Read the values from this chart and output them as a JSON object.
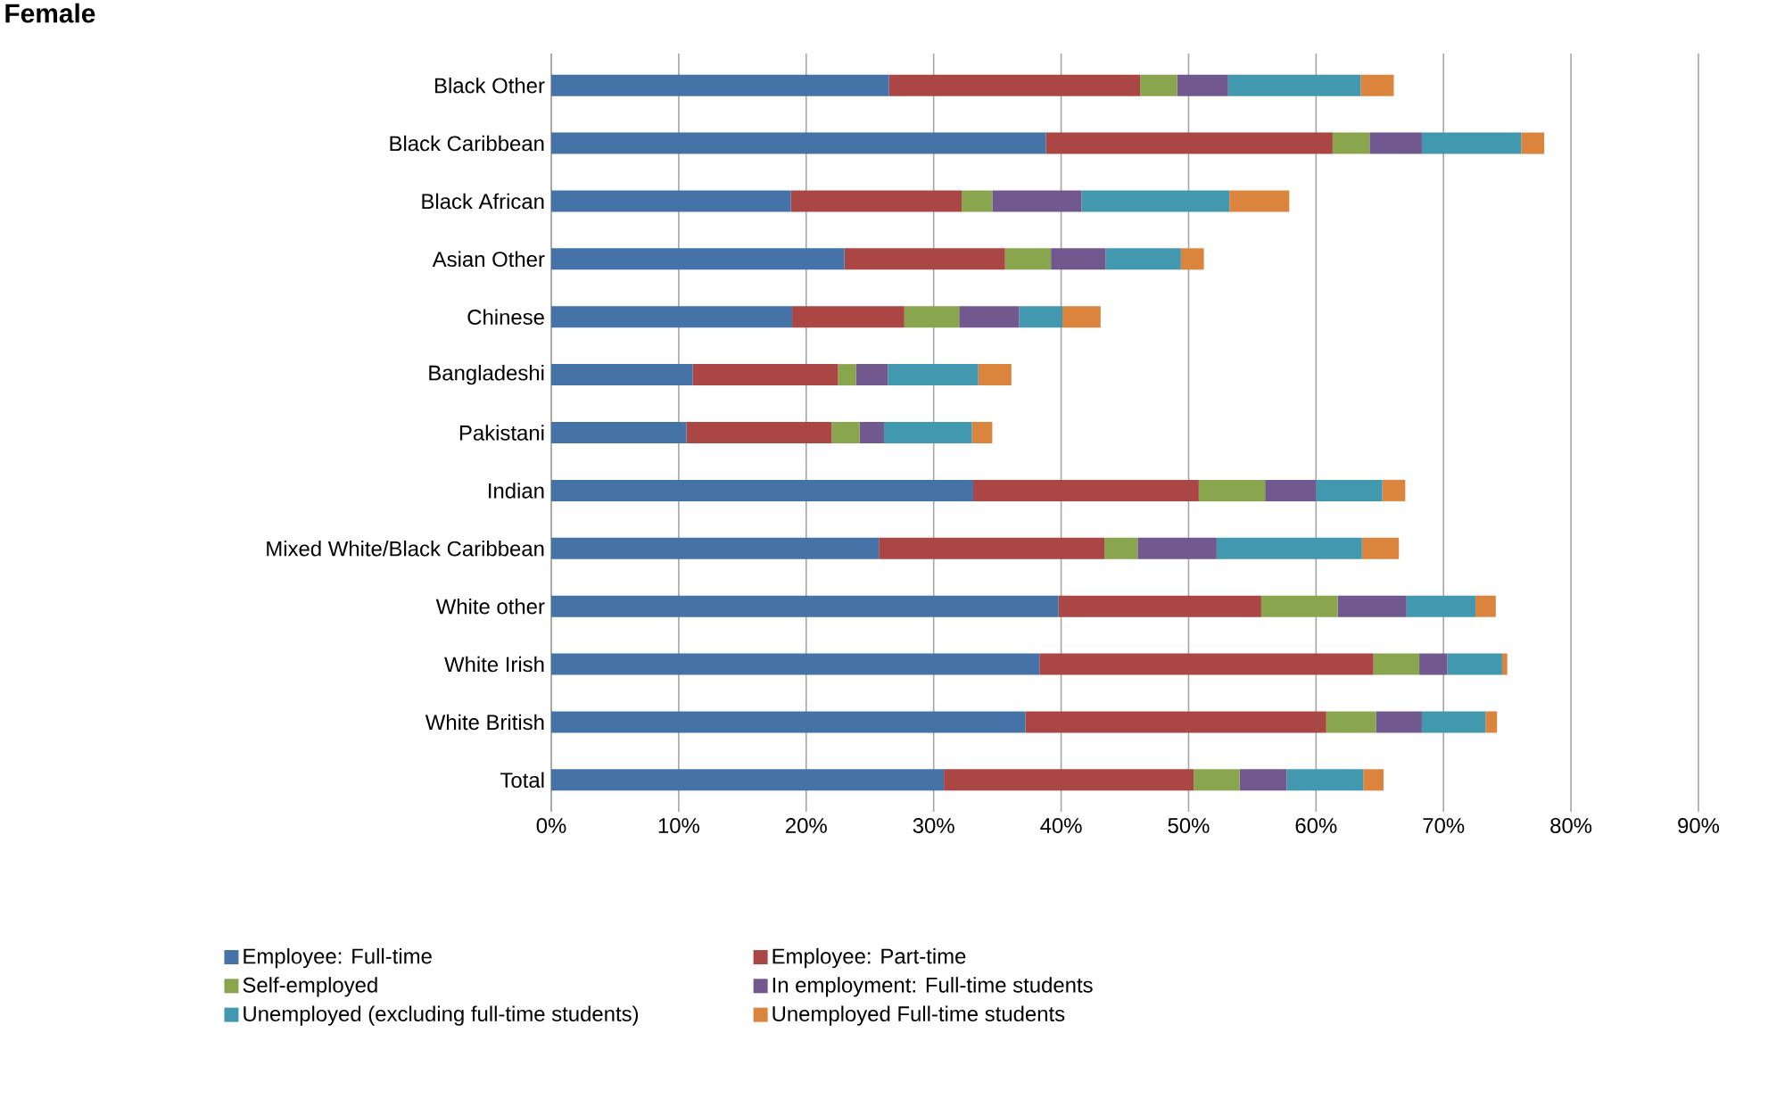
{
  "chart_data": {
    "type": "bar",
    "orientation": "horizontal",
    "stacked": true,
    "title": "Female",
    "categories": [
      "Black Other",
      "Black Caribbean",
      "Black African",
      "Asian Other",
      "Chinese",
      "Bangladeshi",
      "Pakistani",
      "Indian",
      "Mixed White/Black Caribbean",
      "White other",
      "White Irish",
      "White British",
      "Total"
    ],
    "series": [
      {
        "name": "Employee: Full-time",
        "color": "#4572a7",
        "values": [
          26.5,
          38.8,
          18.8,
          23.0,
          18.9,
          11.1,
          10.6,
          33.1,
          25.7,
          39.8,
          38.3,
          37.2,
          30.8
        ]
      },
      {
        "name": "Employee: Part-time",
        "color": "#aa4643",
        "values": [
          19.7,
          22.5,
          13.4,
          12.6,
          8.8,
          11.4,
          11.4,
          17.7,
          17.7,
          15.9,
          26.2,
          23.6,
          19.6
        ]
      },
      {
        "name": "Self-employed",
        "color": "#89a54e",
        "values": [
          2.9,
          2.9,
          2.4,
          3.6,
          4.3,
          1.4,
          2.2,
          5.2,
          2.6,
          6.0,
          3.6,
          3.9,
          3.6
        ]
      },
      {
        "name": "In employment: Full-time students",
        "color": "#71588f",
        "values": [
          4.0,
          4.1,
          7.0,
          4.3,
          4.7,
          2.5,
          1.9,
          4.0,
          6.2,
          5.4,
          2.2,
          3.6,
          3.7
        ]
      },
      {
        "name": "Unemployed (excluding full-time students)",
        "color": "#4198af",
        "values": [
          10.4,
          7.8,
          11.6,
          5.9,
          3.4,
          7.1,
          6.9,
          5.2,
          11.4,
          5.4,
          4.3,
          5.0,
          6.0
        ]
      },
      {
        "name": "Unemployed Full-time students",
        "color": "#db843d",
        "values": [
          2.6,
          1.8,
          4.7,
          1.8,
          3.0,
          2.6,
          1.6,
          1.8,
          2.9,
          1.6,
          0.4,
          0.9,
          1.6
        ]
      }
    ],
    "xlim": [
      0,
      90
    ],
    "xticks": [
      {
        "value": 0,
        "label": "0%"
      },
      {
        "value": 10,
        "label": "10%"
      },
      {
        "value": 20,
        "label": "20%"
      },
      {
        "value": 30,
        "label": "30%"
      },
      {
        "value": 40,
        "label": "40%"
      },
      {
        "value": 50,
        "label": "50%"
      },
      {
        "value": 60,
        "label": "60%"
      },
      {
        "value": 70,
        "label": "70%"
      },
      {
        "value": 80,
        "label": "80%"
      },
      {
        "value": 90,
        "label": "90%"
      }
    ],
    "grid": "x",
    "legend": "bottom"
  }
}
